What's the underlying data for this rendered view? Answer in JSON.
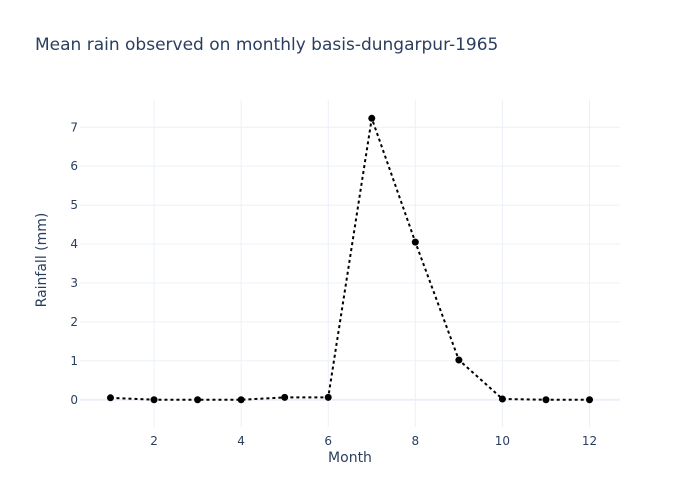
{
  "chart_data": {
    "type": "line",
    "title": "Mean rain observed on monthly basis-dungarpur-1965",
    "xlabel": "Month",
    "ylabel": "Rainfall (mm)",
    "x_ticks": [
      2,
      4,
      6,
      8,
      10,
      12
    ],
    "y_ticks": [
      0,
      1,
      2,
      3,
      4,
      5,
      6,
      7
    ],
    "xlim": [
      0.3,
      12.7
    ],
    "ylim": [
      -0.7,
      7.7
    ],
    "grid": true,
    "series": [
      {
        "line_style": "dotted",
        "marker": "circle",
        "color": "#000000",
        "x": [
          1,
          2,
          3,
          4,
          5,
          6,
          7,
          8,
          9,
          10,
          11,
          12
        ],
        "y": [
          0.05,
          0.0,
          0.0,
          0.0,
          0.06,
          0.06,
          7.23,
          4.05,
          1.02,
          0.02,
          0.0,
          0.0
        ]
      }
    ]
  }
}
